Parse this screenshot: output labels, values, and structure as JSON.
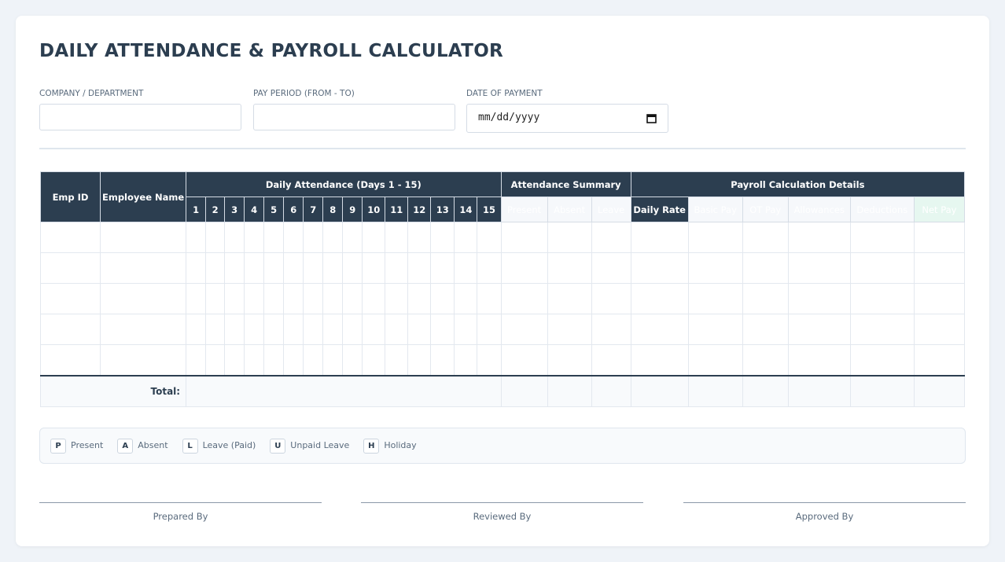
{
  "header": {
    "title": "DAILY ATTENDANCE & PAYROLL CALCULATOR"
  },
  "fields": [
    {
      "label": "COMPANY / DEPARTMENT"
    },
    {
      "label": "PAY PERIOD (FROM - TO)"
    },
    {
      "label": "DATE OF PAYMENT",
      "placeholder": "mm/dd/yyyy"
    }
  ],
  "table": {
    "emp_id": "Emp ID",
    "employee_name": "Employee Name",
    "attendance_group": "Daily Attendance (Days 1 - 15)",
    "days": [
      1,
      2,
      3,
      4,
      5,
      6,
      7,
      8,
      9,
      10,
      11,
      12,
      13,
      14,
      15
    ],
    "summary_group": "Attendance Summary",
    "summary": [
      "Present",
      "Absent",
      "Leave"
    ],
    "payroll_group": "Payroll Calculation Details",
    "payroll": [
      "Daily Rate",
      "Basic Pay",
      "OT Pay",
      "Allowances",
      "Deductions",
      "Net Pay"
    ],
    "total": "Total:"
  },
  "legend": [
    {
      "code": "P",
      "label": "Present"
    },
    {
      "code": "A",
      "label": "Absent"
    },
    {
      "code": "L",
      "label": "Leave (Paid)"
    },
    {
      "code": "U",
      "label": "Unpaid Leave"
    },
    {
      "code": "H",
      "label": "Holiday"
    }
  ],
  "signatures": [
    "Prepared By",
    "Reviewed By",
    "Approved By"
  ]
}
